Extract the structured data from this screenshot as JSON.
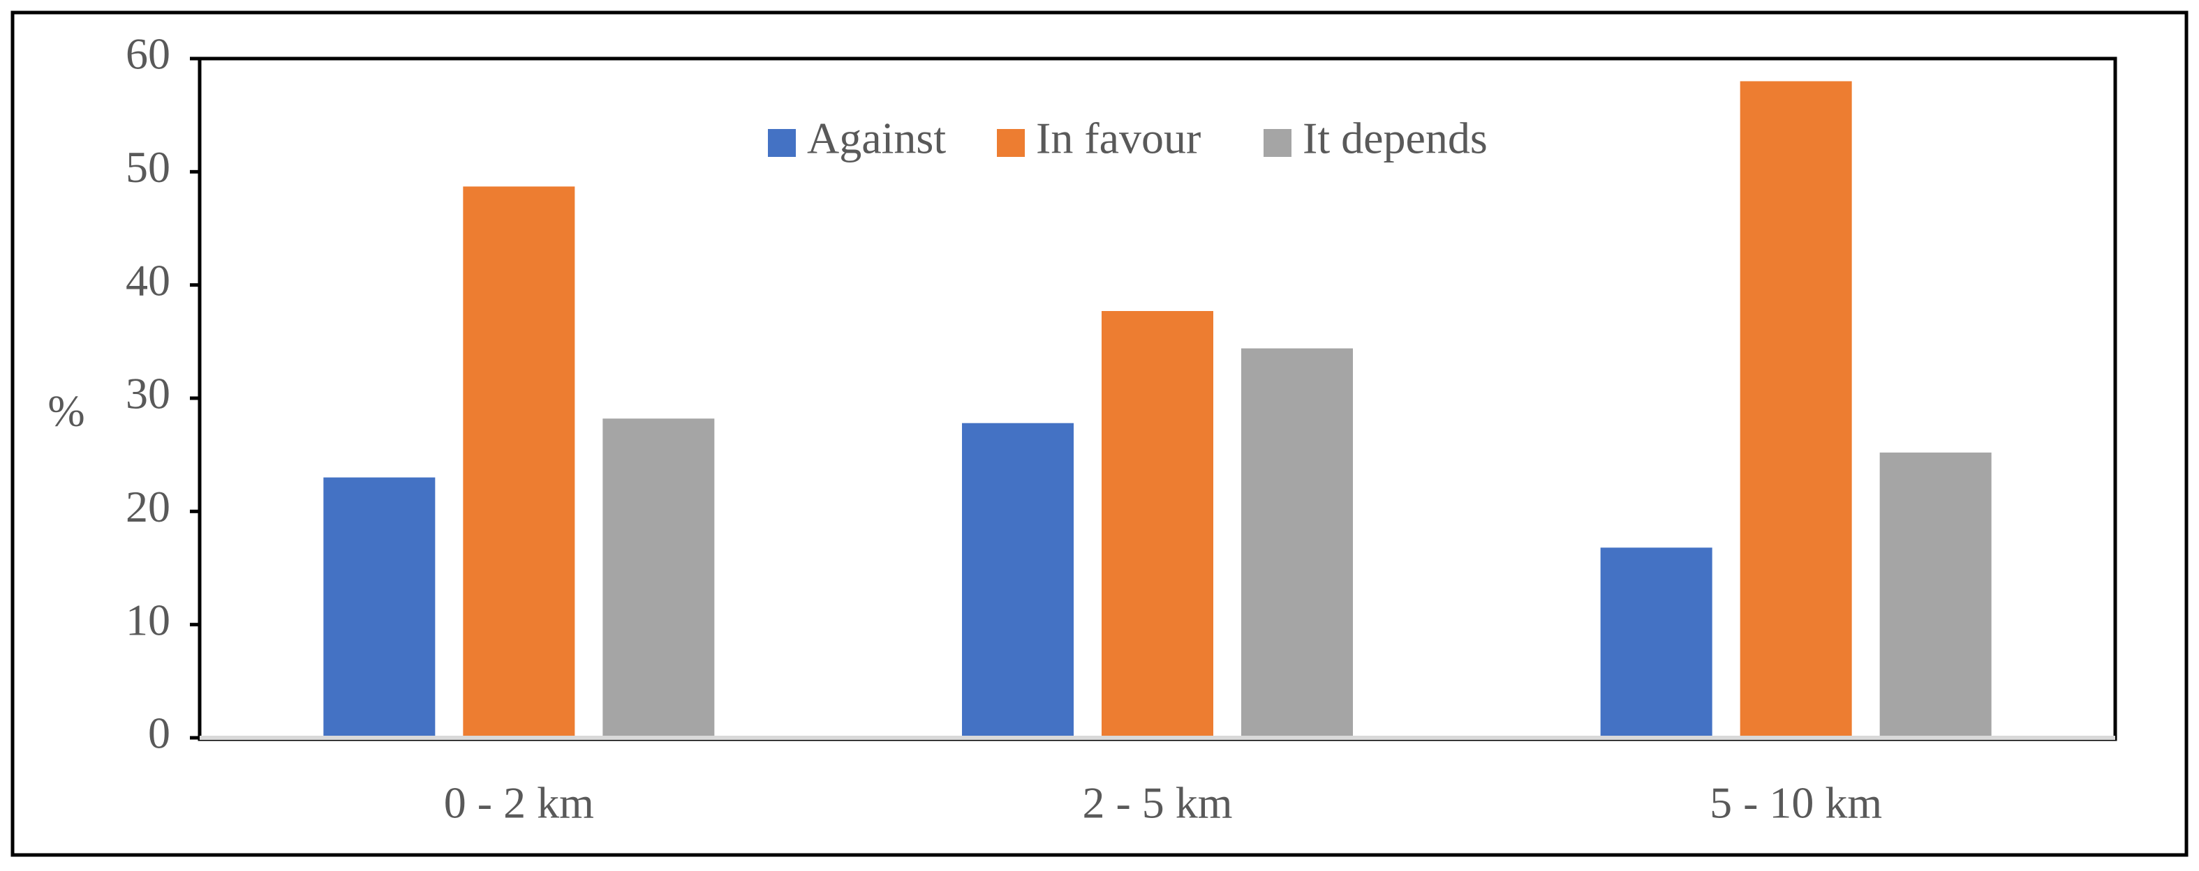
{
  "chart_data": {
    "type": "bar",
    "categories": [
      "0 - 2 km",
      "2 - 5 km",
      "5 - 10 km"
    ],
    "series": [
      {
        "name": "Against",
        "color": "#4472C4",
        "values": [
          23.0,
          27.8,
          16.8
        ]
      },
      {
        "name": "In favour",
        "color": "#ED7D31",
        "values": [
          48.7,
          37.7,
          58.0
        ]
      },
      {
        "name": "It depends",
        "color": "#A5A5A5",
        "values": [
          28.2,
          34.4,
          25.2
        ]
      }
    ],
    "ylabel": "%",
    "xlabel": "",
    "ylim": [
      0,
      60
    ],
    "yticks": [
      0,
      10,
      20,
      30,
      40,
      50,
      60
    ],
    "legend_position": "top-center",
    "grid": false
  }
}
